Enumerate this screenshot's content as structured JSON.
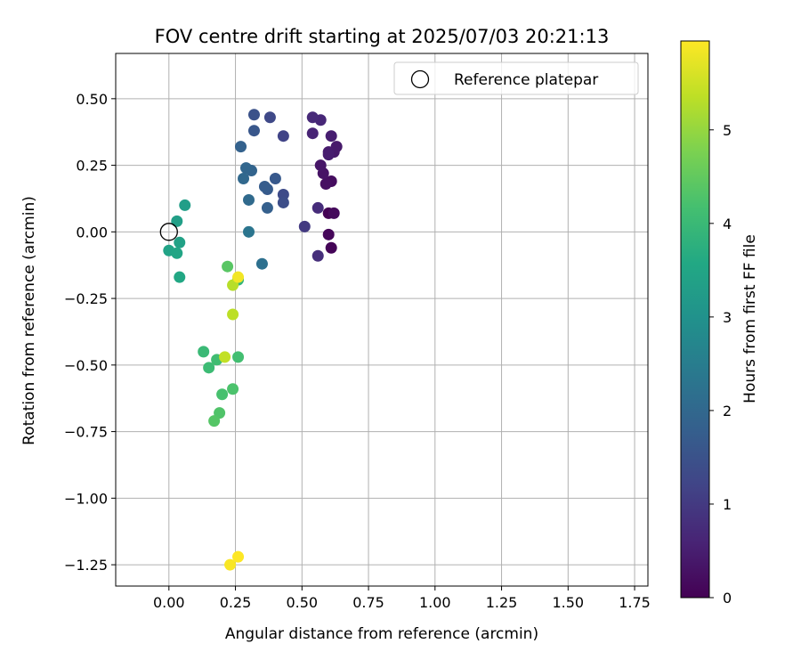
{
  "chart_data": {
    "type": "scatter",
    "title": "FOV centre drift starting at 2025/07/03 20:21:13",
    "xlabel": "Angular distance from reference (arcmin)",
    "ylabel": "Rotation from reference (arcmin)",
    "xlim": [
      -0.2,
      1.8
    ],
    "ylim": [
      -1.33,
      0.67
    ],
    "x_ticks": [
      0.0,
      0.25,
      0.5,
      0.75,
      1.0,
      1.25,
      1.5,
      1.75
    ],
    "x_tick_labels": [
      "0.00",
      "0.25",
      "0.50",
      "0.75",
      "1.00",
      "1.25",
      "1.50",
      "1.75"
    ],
    "y_ticks": [
      0.5,
      0.25,
      0.0,
      -0.25,
      -0.5,
      -0.75,
      -1.0,
      -1.25
    ],
    "y_tick_labels": [
      "0.50",
      "0.25",
      "0.00",
      "−0.25",
      "−0.50",
      "−0.75",
      "−1.00",
      "−1.25"
    ],
    "grid": true,
    "legend": {
      "placement": "top-right",
      "entries": [
        "Reference platepar"
      ]
    },
    "reference_point": {
      "x": 0.0,
      "y": 0.0
    },
    "colorbar": {
      "label": "Hours from first FF file",
      "colormap": "viridis",
      "range": [
        0,
        5.95
      ],
      "ticks": [
        0,
        1,
        2,
        3,
        4,
        5
      ],
      "tick_labels": [
        "0",
        "1",
        "2",
        "3",
        "4",
        "5"
      ]
    },
    "points": [
      {
        "x": 0.6,
        "y": 0.07,
        "c": 0.0
      },
      {
        "x": 0.61,
        "y": -0.06,
        "c": 0.05
      },
      {
        "x": 0.6,
        "y": -0.01,
        "c": 0.1
      },
      {
        "x": 0.62,
        "y": 0.07,
        "c": 0.15
      },
      {
        "x": 0.61,
        "y": 0.19,
        "c": 0.2
      },
      {
        "x": 0.59,
        "y": 0.18,
        "c": 0.25
      },
      {
        "x": 0.58,
        "y": 0.22,
        "c": 0.3
      },
      {
        "x": 0.57,
        "y": 0.25,
        "c": 0.35
      },
      {
        "x": 0.62,
        "y": 0.3,
        "c": 0.4
      },
      {
        "x": 0.63,
        "y": 0.32,
        "c": 0.42
      },
      {
        "x": 0.6,
        "y": 0.3,
        "c": 0.45
      },
      {
        "x": 0.6,
        "y": 0.29,
        "c": 0.48
      },
      {
        "x": 0.61,
        "y": 0.36,
        "c": 0.5
      },
      {
        "x": 0.54,
        "y": 0.37,
        "c": 0.6
      },
      {
        "x": 0.57,
        "y": 0.42,
        "c": 0.65
      },
      {
        "x": 0.54,
        "y": 0.43,
        "c": 0.7
      },
      {
        "x": 0.56,
        "y": 0.09,
        "c": 0.75
      },
      {
        "x": 0.56,
        "y": -0.09,
        "c": 0.8
      },
      {
        "x": 0.51,
        "y": 0.02,
        "c": 1.0
      },
      {
        "x": 0.43,
        "y": 0.36,
        "c": 1.2
      },
      {
        "x": 0.38,
        "y": 0.43,
        "c": 1.3
      },
      {
        "x": 0.43,
        "y": 0.14,
        "c": 1.35
      },
      {
        "x": 0.43,
        "y": 0.11,
        "c": 1.4
      },
      {
        "x": 0.32,
        "y": 0.44,
        "c": 1.5
      },
      {
        "x": 0.32,
        "y": 0.38,
        "c": 1.6
      },
      {
        "x": 0.4,
        "y": 0.2,
        "c": 1.65
      },
      {
        "x": 0.37,
        "y": 0.16,
        "c": 1.7
      },
      {
        "x": 0.36,
        "y": 0.17,
        "c": 1.75
      },
      {
        "x": 0.37,
        "y": 0.09,
        "c": 1.8
      },
      {
        "x": 0.27,
        "y": 0.32,
        "c": 1.85
      },
      {
        "x": 0.31,
        "y": 0.23,
        "c": 1.9
      },
      {
        "x": 0.29,
        "y": 0.24,
        "c": 1.95
      },
      {
        "x": 0.28,
        "y": 0.2,
        "c": 2.0
      },
      {
        "x": 0.3,
        "y": 0.12,
        "c": 2.05
      },
      {
        "x": 0.35,
        "y": -0.12,
        "c": 2.2
      },
      {
        "x": 0.3,
        "y": 0.0,
        "c": 2.3
      },
      {
        "x": 0.06,
        "y": 0.1,
        "c": 3.3
      },
      {
        "x": 0.03,
        "y": 0.04,
        "c": 3.35
      },
      {
        "x": 0.04,
        "y": -0.04,
        "c": 3.4
      },
      {
        "x": 0.0,
        "y": -0.07,
        "c": 3.45
      },
      {
        "x": 0.03,
        "y": -0.08,
        "c": 3.5
      },
      {
        "x": 0.04,
        "y": -0.17,
        "c": 3.55
      },
      {
        "x": 0.26,
        "y": -0.18,
        "c": 3.9
      },
      {
        "x": 0.13,
        "y": -0.45,
        "c": 4.0
      },
      {
        "x": 0.15,
        "y": -0.51,
        "c": 4.05
      },
      {
        "x": 0.18,
        "y": -0.48,
        "c": 4.1
      },
      {
        "x": 0.26,
        "y": -0.47,
        "c": 4.15
      },
      {
        "x": 0.2,
        "y": -0.61,
        "c": 4.2
      },
      {
        "x": 0.24,
        "y": -0.59,
        "c": 4.25
      },
      {
        "x": 0.19,
        "y": -0.68,
        "c": 4.3
      },
      {
        "x": 0.17,
        "y": -0.71,
        "c": 4.35
      },
      {
        "x": 0.22,
        "y": -0.13,
        "c": 4.4
      },
      {
        "x": 0.24,
        "y": -0.2,
        "c": 5.3
      },
      {
        "x": 0.24,
        "y": -0.31,
        "c": 5.35
      },
      {
        "x": 0.21,
        "y": -0.47,
        "c": 5.4
      },
      {
        "x": 0.26,
        "y": -0.17,
        "c": 5.85
      },
      {
        "x": 0.23,
        "y": -1.25,
        "c": 5.9
      },
      {
        "x": 0.26,
        "y": -1.22,
        "c": 5.95
      }
    ]
  }
}
